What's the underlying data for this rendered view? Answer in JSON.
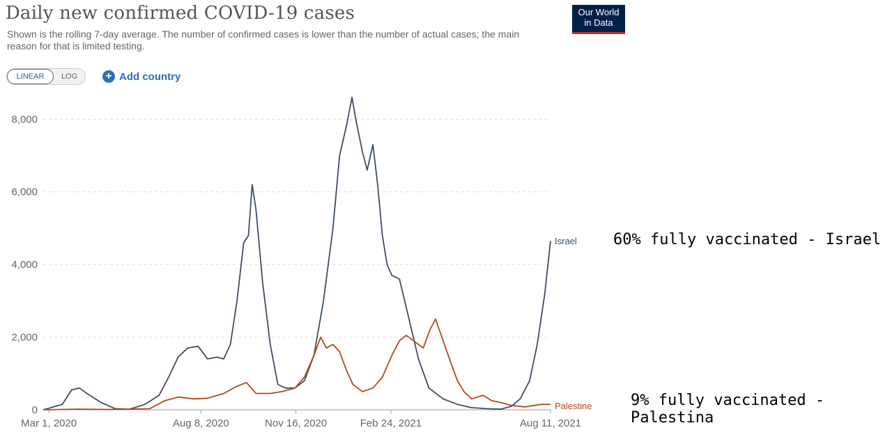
{
  "title": "Daily new confirmed COVID-19 cases",
  "subtitle": "Shown is the rolling 7-day average. The number of confirmed cases is lower than the number of actual cases; the main reason for that is limited testing.",
  "logo": {
    "line1": "Our World",
    "line2": "in Data"
  },
  "controls": {
    "linear_label": "LINEAR",
    "log_label": "LOG",
    "add_country_label": "Add country",
    "add_icon": "plus-circle-icon"
  },
  "annotations": {
    "israel": "60% fully vaccinated - Israel",
    "palestine": "9% fully vaccinated - Palestina"
  },
  "colors": {
    "israel": "#3c4e64",
    "palestine": "#b5471f",
    "grid": "#dddddd",
    "axis": "#666666"
  },
  "chart_data": {
    "type": "line",
    "y_ticks": [
      0,
      2000,
      4000,
      6000,
      8000
    ],
    "y_tick_labels": [
      "0",
      "2,000",
      "4,000",
      "6,000",
      "8,000"
    ],
    "ylim": [
      0,
      8600
    ],
    "x_tick_labels": [
      "Mar 1, 2020",
      "Aug 8, 2020",
      "Nov 16, 2020",
      "Feb 24, 2021",
      "Aug 11, 2021"
    ],
    "x_ticks": [
      "2020-03-01",
      "2020-08-08",
      "2020-11-16",
      "2021-02-24",
      "2021-08-11"
    ],
    "xlim": [
      "2020-02-24",
      "2021-08-11"
    ],
    "grid": "horizontal dashed",
    "legend": "end-of-line labels",
    "series": [
      {
        "name": "Israel",
        "x": [
          "2020-02-24",
          "2020-03-15",
          "2020-03-25",
          "2020-04-02",
          "2020-04-10",
          "2020-04-25",
          "2020-05-10",
          "2020-05-25",
          "2020-06-10",
          "2020-06-25",
          "2020-07-05",
          "2020-07-15",
          "2020-07-25",
          "2020-08-05",
          "2020-08-15",
          "2020-08-25",
          "2020-09-01",
          "2020-09-08",
          "2020-09-15",
          "2020-09-22",
          "2020-09-27",
          "2020-10-01",
          "2020-10-05",
          "2020-10-12",
          "2020-10-20",
          "2020-10-28",
          "2020-11-05",
          "2020-11-15",
          "2020-11-25",
          "2020-12-05",
          "2020-12-15",
          "2020-12-25",
          "2021-01-01",
          "2021-01-08",
          "2021-01-14",
          "2021-01-18",
          "2021-01-25",
          "2021-01-30",
          "2021-02-05",
          "2021-02-10",
          "2021-02-15",
          "2021-02-20",
          "2021-02-25",
          "2021-03-05",
          "2021-03-15",
          "2021-03-25",
          "2021-04-05",
          "2021-04-20",
          "2021-05-05",
          "2021-05-20",
          "2021-06-05",
          "2021-06-20",
          "2021-07-01",
          "2021-07-10",
          "2021-07-20",
          "2021-07-28",
          "2021-08-05",
          "2021-08-11"
        ],
        "y": [
          0,
          150,
          550,
          600,
          450,
          200,
          30,
          20,
          150,
          400,
          900,
          1450,
          1700,
          1750,
          1400,
          1450,
          1400,
          1800,
          3000,
          4600,
          4800,
          6200,
          5500,
          3500,
          1800,
          700,
          600,
          600,
          800,
          1500,
          3000,
          5000,
          7000,
          7800,
          8600,
          8000,
          7100,
          6600,
          7300,
          6200,
          4800,
          4000,
          3700,
          3600,
          2500,
          1400,
          600,
          300,
          150,
          60,
          30,
          20,
          100,
          300,
          800,
          1800,
          3200,
          4650
        ]
      },
      {
        "name": "Palestine",
        "x": [
          "2020-02-24",
          "2020-04-01",
          "2020-05-01",
          "2020-06-15",
          "2020-07-01",
          "2020-07-15",
          "2020-08-01",
          "2020-08-15",
          "2020-09-01",
          "2020-09-15",
          "2020-09-25",
          "2020-10-05",
          "2020-10-20",
          "2020-11-01",
          "2020-11-15",
          "2020-11-25",
          "2020-12-05",
          "2020-12-12",
          "2020-12-18",
          "2020-12-25",
          "2021-01-01",
          "2021-01-08",
          "2021-01-15",
          "2021-01-25",
          "2021-02-05",
          "2021-02-15",
          "2021-02-25",
          "2021-03-05",
          "2021-03-12",
          "2021-03-20",
          "2021-03-30",
          "2021-04-06",
          "2021-04-12",
          "2021-04-20",
          "2021-04-28",
          "2021-05-05",
          "2021-05-12",
          "2021-05-20",
          "2021-06-01",
          "2021-06-10",
          "2021-06-20",
          "2021-07-01",
          "2021-07-15",
          "2021-08-01",
          "2021-08-11"
        ],
        "y": [
          0,
          20,
          10,
          30,
          250,
          350,
          300,
          320,
          450,
          650,
          750,
          450,
          450,
          500,
          600,
          900,
          1500,
          2000,
          1700,
          1800,
          1600,
          1100,
          700,
          500,
          600,
          900,
          1500,
          1900,
          2050,
          1900,
          1700,
          2200,
          2500,
          1900,
          1300,
          800,
          500,
          300,
          400,
          250,
          200,
          120,
          80,
          150,
          150
        ]
      }
    ]
  }
}
